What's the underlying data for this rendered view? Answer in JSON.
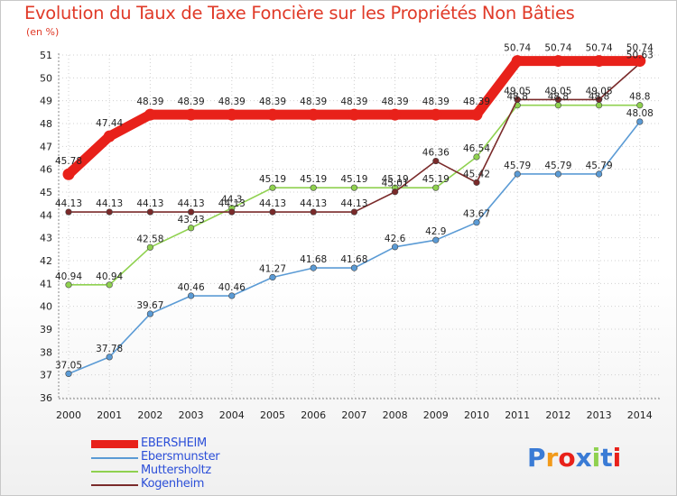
{
  "chart_data": {
    "type": "line",
    "title": "Evolution du Taux de Taxe Foncière sur les Propriétés Non Bâties",
    "subtitle": "(en %)",
    "xlabel": "",
    "ylabel": "(en %)",
    "ylim": [
      36,
      51
    ],
    "grid": true,
    "categories": [
      "2000",
      "2001",
      "2002",
      "2003",
      "2004",
      "2005",
      "2006",
      "2007",
      "2008",
      "2009",
      "2010",
      "2011",
      "2012",
      "2013",
      "2014"
    ],
    "yticks": [
      "36",
      "37",
      "38",
      "39",
      "40",
      "41",
      "42",
      "43",
      "44",
      "45",
      "46",
      "47",
      "48",
      "49",
      "50",
      "51"
    ],
    "series": [
      {
        "name": "EBERSHEIM",
        "color": "#e8211a",
        "values": [
          45.78,
          47.44,
          48.39,
          48.39,
          48.39,
          48.39,
          48.39,
          48.39,
          48.39,
          48.39,
          48.39,
          50.74,
          50.74,
          50.74,
          50.74
        ],
        "labels": [
          "45.78",
          "47.44",
          "48.39",
          "48.39",
          "48.39",
          "48.39",
          "48.39",
          "48.39",
          "48.39",
          "48.39",
          "48.39",
          "50.74",
          "50.74",
          "50.74",
          "50.74"
        ]
      },
      {
        "name": "Ebersmunster",
        "color": "#5b9bd5",
        "values": [
          37.05,
          37.78,
          39.67,
          40.46,
          40.46,
          41.27,
          41.68,
          41.68,
          42.6,
          42.9,
          43.67,
          45.79,
          45.79,
          45.79,
          48.08
        ],
        "labels": [
          "37.05",
          "37.78",
          "39.67",
          "40.46",
          "40.46",
          "41.27",
          "41.68",
          "41.68",
          "42.6",
          "42.9",
          "43.67",
          "45.79",
          "45.79",
          "45.79",
          "48.08"
        ]
      },
      {
        "name": "Muttersholtz",
        "color": "#8fd14f",
        "values": [
          40.94,
          40.94,
          42.58,
          43.43,
          44.3,
          45.19,
          45.19,
          45.19,
          45.19,
          45.19,
          46.54,
          48.8,
          48.8,
          48.8,
          48.8
        ],
        "labels": [
          "40.94",
          "40.94",
          "42.58",
          "43.43",
          "44.3",
          "45.19",
          "45.19",
          "45.19",
          "45.19",
          "45.19",
          "46.54",
          "48.8",
          "48.8",
          "48.8",
          "48.8"
        ]
      },
      {
        "name": "Kogenheim",
        "color": "#7a2a2a",
        "values": [
          44.13,
          44.13,
          44.13,
          44.13,
          44.13,
          44.13,
          44.13,
          44.13,
          45.01,
          46.36,
          45.42,
          49.05,
          49.05,
          49.05,
          50.63
        ],
        "labels": [
          "44.13",
          "44.13",
          "44.13",
          "44.13",
          "44.13",
          "44.13",
          "44.13",
          "44.13",
          "45.01",
          "46.36",
          "45.42",
          "49.05",
          "49.05",
          "49.05",
          "50.63"
        ]
      }
    ]
  },
  "logo": {
    "text": "Proxiti",
    "letters": [
      "P",
      "r",
      "o",
      "x",
      "i",
      "t",
      "i"
    ],
    "colors": [
      "#3a7bd5",
      "#f29a1a",
      "#e8211a",
      "#3a7bd5",
      "#8fd14f",
      "#3a7bd5",
      "#e8211a"
    ]
  }
}
